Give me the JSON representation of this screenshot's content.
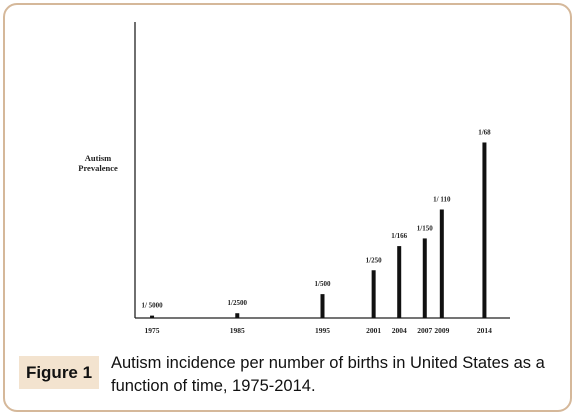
{
  "figure": {
    "label": "Figure 1",
    "caption": "Autism incidence per number of births in United States as a function of time, 1975-2014."
  },
  "chart_data": {
    "type": "bar",
    "ylabel_line1": "Autism",
    "ylabel_line2": "Prevalence",
    "x": [
      1975,
      1985,
      1995,
      2001,
      2004,
      2007,
      2009,
      2014
    ],
    "categories": [
      "1975",
      "1985",
      "1995",
      "2001",
      "2004",
      "2007",
      "2009",
      "2014"
    ],
    "data_labels": [
      "1/ 5000",
      "1/2500",
      "1/500",
      "1/250",
      "1/166",
      "1/150",
      "1/ 110",
      "1/68"
    ],
    "values": [
      0.0002,
      0.0004,
      0.002,
      0.004,
      0.006024,
      0.006667,
      0.009091,
      0.014706
    ],
    "xlim": [
      1973,
      2017
    ],
    "ylim": [
      0,
      0.0248
    ],
    "grid": false,
    "colors": {
      "bar": "#111111",
      "axis": "#222222"
    }
  }
}
